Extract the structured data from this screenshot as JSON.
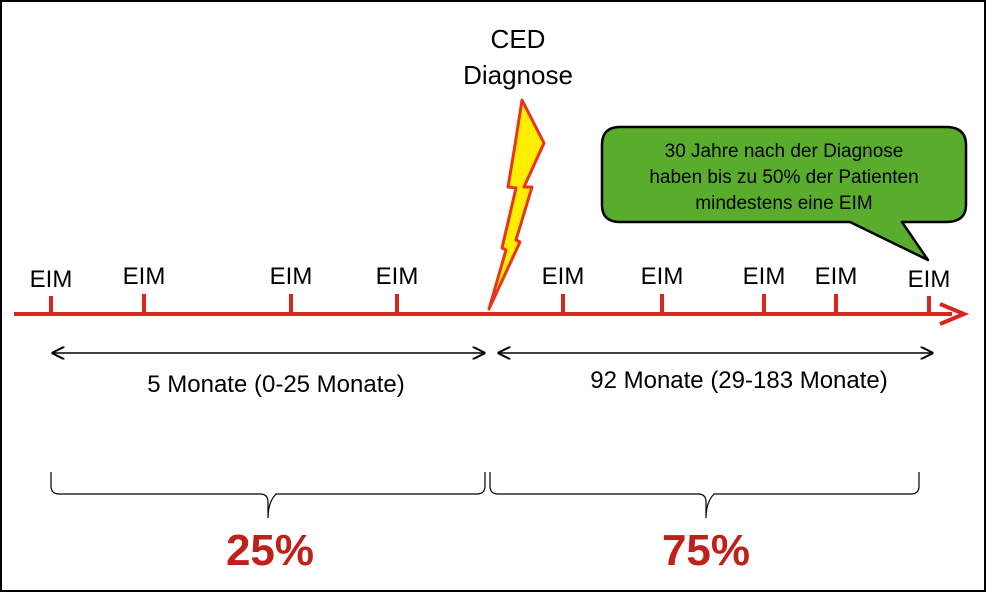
{
  "diagnosis": {
    "line1": "CED",
    "line2": "Diagnose"
  },
  "callout": {
    "line1": "30 Jahre nach der Diagnose",
    "line2": "haben bis zu 50% der Patienten",
    "line3": "mindestens eine EIM"
  },
  "events": {
    "before": [
      "EIM",
      "EIM",
      "EIM",
      "EIM"
    ],
    "after": [
      "EIM",
      "EIM",
      "EIM",
      "EIM",
      "EIM"
    ]
  },
  "durations": {
    "before": "5 Monate (0-25 Monate)",
    "after": "92 Monate (29-183 Monate)"
  },
  "shares": {
    "before": "25%",
    "after": "75%"
  },
  "colors": {
    "timeline": "#d9261c",
    "percent": "#c0201a",
    "bolt_fill": "#ffee00",
    "bolt_stroke": "#e8361c",
    "callout_fill": "#5aac2c",
    "border": "#000000"
  }
}
